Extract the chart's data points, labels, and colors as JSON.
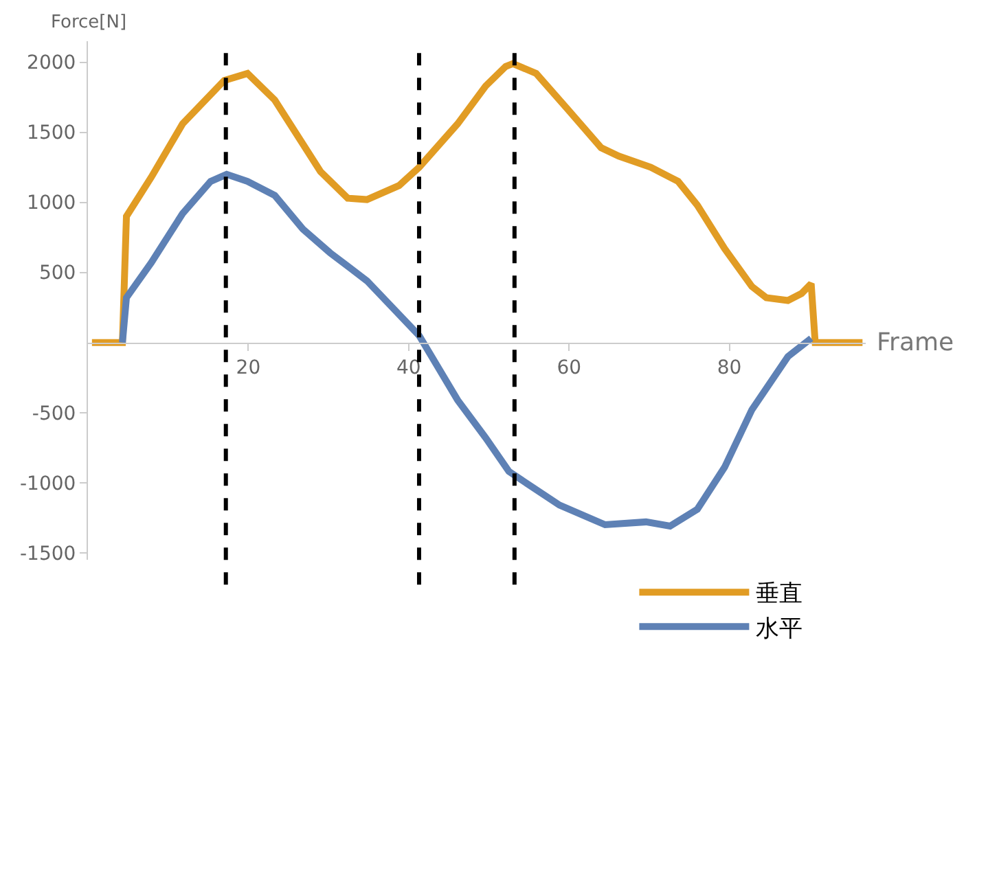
{
  "chart_data": {
    "type": "line",
    "xlabel": "Frame",
    "ylabel": "Force[N]",
    "xlim": [
      0,
      97
    ],
    "ylim": [
      -1550,
      2150
    ],
    "xticks": [
      20,
      40,
      60,
      80
    ],
    "yticks": [
      -1500,
      -1000,
      -500,
      500,
      1000,
      1500,
      2000
    ],
    "legend": "bottom right",
    "marker": "none",
    "line_style": "solid",
    "series": [
      {
        "name": "垂直",
        "color": "#e19c24",
        "x": [
          0.5,
          4.3,
          4.8,
          7.9,
          11.8,
          17.0,
          19.9,
          23.3,
          29.0,
          32.4,
          34.8,
          38.8,
          41.3,
          46.1,
          49.6,
          52.1,
          53.0,
          55.9,
          59.9,
          64.0,
          66.2,
          70.2,
          73.6,
          76.0,
          79.4,
          82.8,
          84.6,
          87.3,
          89.0,
          90.2,
          90.7,
          96.6
        ],
        "values": [
          0,
          0,
          900,
          1180,
          1560,
          1870,
          1920,
          1730,
          1220,
          1030,
          1020,
          1120,
          1250,
          1560,
          1830,
          1970,
          1990,
          1920,
          1660,
          1390,
          1330,
          1250,
          1150,
          980,
          670,
          400,
          320,
          300,
          350,
          420,
          0,
          0
        ]
      },
      {
        "name": "水平",
        "color": "#5e81b5",
        "x": [
          4.3,
          4.8,
          7.9,
          11.8,
          15.3,
          17.3,
          19.9,
          23.3,
          26.8,
          30.2,
          34.8,
          38.8,
          41.3,
          46.1,
          49.6,
          52.5,
          58.8,
          64.5,
          69.6,
          72.6,
          76.0,
          79.4,
          82.8,
          87.3,
          90.2
        ],
        "values": [
          0,
          320,
          570,
          920,
          1150,
          1200,
          1150,
          1050,
          810,
          640,
          440,
          200,
          50,
          -410,
          -680,
          -920,
          -1160,
          -1300,
          -1280,
          -1310,
          -1190,
          -890,
          -480,
          -100,
          30
        ]
      }
    ],
    "ref_lines": [
      {
        "axis": "x",
        "value": 17.2,
        "color": "#000000",
        "line_style": "dashed"
      },
      {
        "axis": "x",
        "value": 41.3,
        "color": "#000000",
        "line_style": "dashed"
      },
      {
        "axis": "x",
        "value": 53.2,
        "color": "#000000",
        "line_style": "dashed"
      }
    ]
  }
}
